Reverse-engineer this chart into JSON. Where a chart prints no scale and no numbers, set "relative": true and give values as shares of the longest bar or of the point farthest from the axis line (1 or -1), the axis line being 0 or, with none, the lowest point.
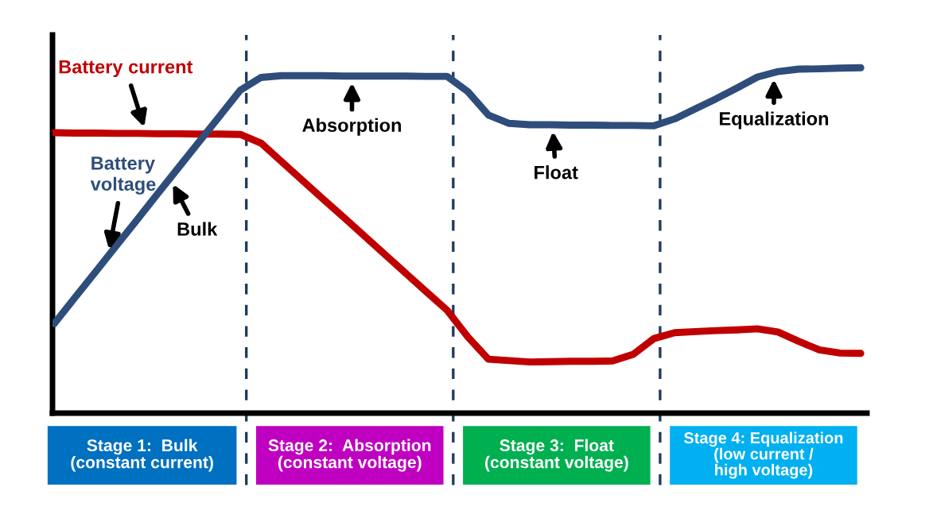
{
  "chart_data": {
    "type": "line",
    "relative": true,
    "categories": [
      null,
      null,
      null,
      null,
      null,
      null,
      null,
      null,
      null,
      null,
      null,
      null,
      null,
      null,
      null,
      null,
      null,
      null,
      null,
      null,
      null,
      null,
      null,
      null,
      null,
      null,
      null,
      null,
      null,
      null,
      null,
      null,
      null,
      null,
      null,
      null,
      null,
      null,
      null,
      null
    ],
    "series": [
      {
        "name": "Battery current",
        "color": "#c00000",
        "values": [
          0.812,
          0.811,
          0.811,
          0.81,
          0.81,
          0.809,
          0.809,
          0.808,
          0.808,
          0.807,
          0.782,
          0.728,
          0.674,
          0.62,
          0.567,
          0.513,
          0.459,
          0.405,
          0.351,
          0.298,
          0.221,
          0.156,
          0.152,
          0.148,
          0.149,
          0.15,
          0.15,
          0.151,
          0.17,
          0.216,
          0.233,
          0.236,
          0.239,
          0.241,
          0.244,
          0.235,
          0.208,
          0.183,
          0.174,
          0.173
        ]
      },
      {
        "name": "Battery voltage",
        "color": "#2e4d7b",
        "values": [
          0.259,
          0.334,
          0.409,
          0.484,
          0.559,
          0.635,
          0.71,
          0.785,
          0.86,
          0.935,
          0.972,
          0.977,
          0.977,
          0.977,
          0.976,
          0.976,
          0.976,
          0.976,
          0.975,
          0.975,
          0.931,
          0.863,
          0.839,
          0.835,
          0.835,
          0.834,
          0.834,
          0.833,
          0.833,
          0.832,
          0.852,
          0.881,
          0.91,
          0.941,
          0.973,
          0.989,
          0.996,
          0.997,
          0.999,
          1.0
        ]
      }
    ],
    "annotations": [
      "Bulk",
      "Absorption",
      "Float",
      "Equalization",
      "Stage 1:  Bulk\n(constant current)",
      "Stage 2:  Absorption\n(constant voltage)",
      "Stage 3:  Float\n(constant voltage)",
      "Stage 4: Equalization\n(low current /\nhigh voltage)"
    ]
  }
}
